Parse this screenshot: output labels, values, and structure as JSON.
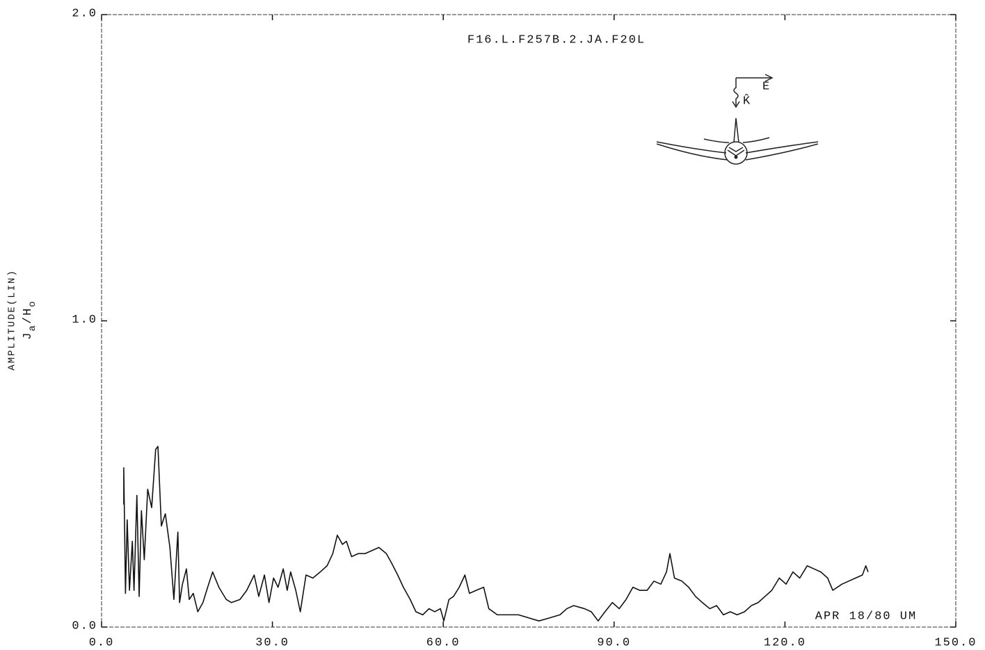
{
  "chart_data": {
    "type": "line",
    "title": "F16.L.F257B.2.JA.F20L",
    "annotation": "APR 18/80 UM",
    "ylabel": "AMPLITUDE(LIN)",
    "ylabel_quantity": [
      "J",
      "a",
      "/H",
      "o"
    ],
    "inset_labels": [
      "E",
      "K̂"
    ],
    "xlim": [
      0,
      150
    ],
    "ylim": [
      0,
      2
    ],
    "xticks": [
      {
        "value": 0,
        "label": "0.0"
      },
      {
        "value": 30,
        "label": "30.0"
      },
      {
        "value": 60,
        "label": "60.0"
      },
      {
        "value": 90,
        "label": "90.0"
      },
      {
        "value": 120,
        "label": "120.0"
      },
      {
        "value": 150,
        "label": "150.0"
      }
    ],
    "yticks": [
      {
        "value": 0,
        "label": "0.0"
      },
      {
        "value": 1,
        "label": "1.0"
      },
      {
        "value": 2,
        "label": "2.0"
      }
    ],
    "grid": false,
    "series": [
      {
        "color": "#111111",
        "x": [
          3.9,
          3.9,
          4.2,
          4.5,
          4.9,
          5.4,
          5.7,
          6.2,
          6.6,
          7.0,
          7.5,
          8.1,
          8.8,
          9.5,
          9.9,
          10.5,
          11.2,
          12.0,
          12.7,
          13.4,
          13.7,
          14.2,
          14.9,
          15.4,
          16.1,
          16.9,
          17.8,
          18.8,
          19.5,
          20.6,
          21.9,
          22.8,
          24.3,
          25.5,
          26.8,
          27.6,
          28.6,
          29.4,
          30.2,
          31.0,
          31.9,
          32.6,
          33.2,
          34.1,
          34.9,
          35.9,
          37.1,
          38.4,
          39.6,
          40.6,
          41.4,
          42.3,
          43.0,
          43.9,
          45.1,
          46.3,
          47.5,
          48.7,
          50.0,
          50.9,
          52.0,
          53.0,
          54.2,
          55.2,
          56.4,
          57.5,
          58.5,
          59.5,
          60.1,
          61.0,
          61.8,
          62.8,
          63.8,
          64.6,
          65.8,
          67.1,
          68.0,
          69.5,
          71.3,
          73.2,
          75.0,
          76.8,
          78.7,
          80.5,
          81.7,
          82.9,
          84.8,
          86.0,
          87.2,
          88.4,
          89.7,
          90.9,
          92.1,
          93.3,
          94.5,
          95.8,
          97.0,
          98.2,
          99.2,
          99.8,
          100.6,
          101.9,
          103.1,
          104.3,
          105.5,
          106.8,
          108.0,
          109.2,
          110.4,
          111.6,
          112.9,
          114.1,
          115.3,
          116.5,
          117.7,
          119.0,
          120.2,
          121.4,
          122.6,
          123.9,
          125.1,
          126.3,
          127.5,
          128.4,
          130.0,
          131.2,
          132.4,
          133.6,
          134.2,
          134.6
        ],
        "values": [
          0.4,
          0.52,
          0.11,
          0.35,
          0.12,
          0.28,
          0.12,
          0.43,
          0.1,
          0.38,
          0.22,
          0.45,
          0.39,
          0.58,
          0.59,
          0.33,
          0.37,
          0.26,
          0.09,
          0.31,
          0.08,
          0.14,
          0.19,
          0.09,
          0.11,
          0.05,
          0.08,
          0.14,
          0.18,
          0.13,
          0.09,
          0.08,
          0.09,
          0.12,
          0.17,
          0.1,
          0.17,
          0.08,
          0.16,
          0.13,
          0.19,
          0.12,
          0.18,
          0.12,
          0.05,
          0.17,
          0.16,
          0.18,
          0.2,
          0.24,
          0.3,
          0.27,
          0.28,
          0.23,
          0.24,
          0.24,
          0.25,
          0.26,
          0.24,
          0.21,
          0.17,
          0.13,
          0.09,
          0.05,
          0.04,
          0.06,
          0.05,
          0.06,
          0.02,
          0.09,
          0.1,
          0.13,
          0.17,
          0.11,
          0.12,
          0.13,
          0.06,
          0.04,
          0.04,
          0.04,
          0.03,
          0.02,
          0.03,
          0.04,
          0.06,
          0.07,
          0.06,
          0.05,
          0.02,
          0.05,
          0.08,
          0.06,
          0.09,
          0.13,
          0.12,
          0.12,
          0.15,
          0.14,
          0.18,
          0.24,
          0.16,
          0.15,
          0.13,
          0.1,
          0.08,
          0.06,
          0.07,
          0.04,
          0.05,
          0.04,
          0.05,
          0.07,
          0.08,
          0.1,
          0.12,
          0.16,
          0.14,
          0.18,
          0.16,
          0.2,
          0.19,
          0.18,
          0.16,
          0.12,
          0.14,
          0.15,
          0.16,
          0.17,
          0.2,
          0.18
        ]
      }
    ]
  }
}
